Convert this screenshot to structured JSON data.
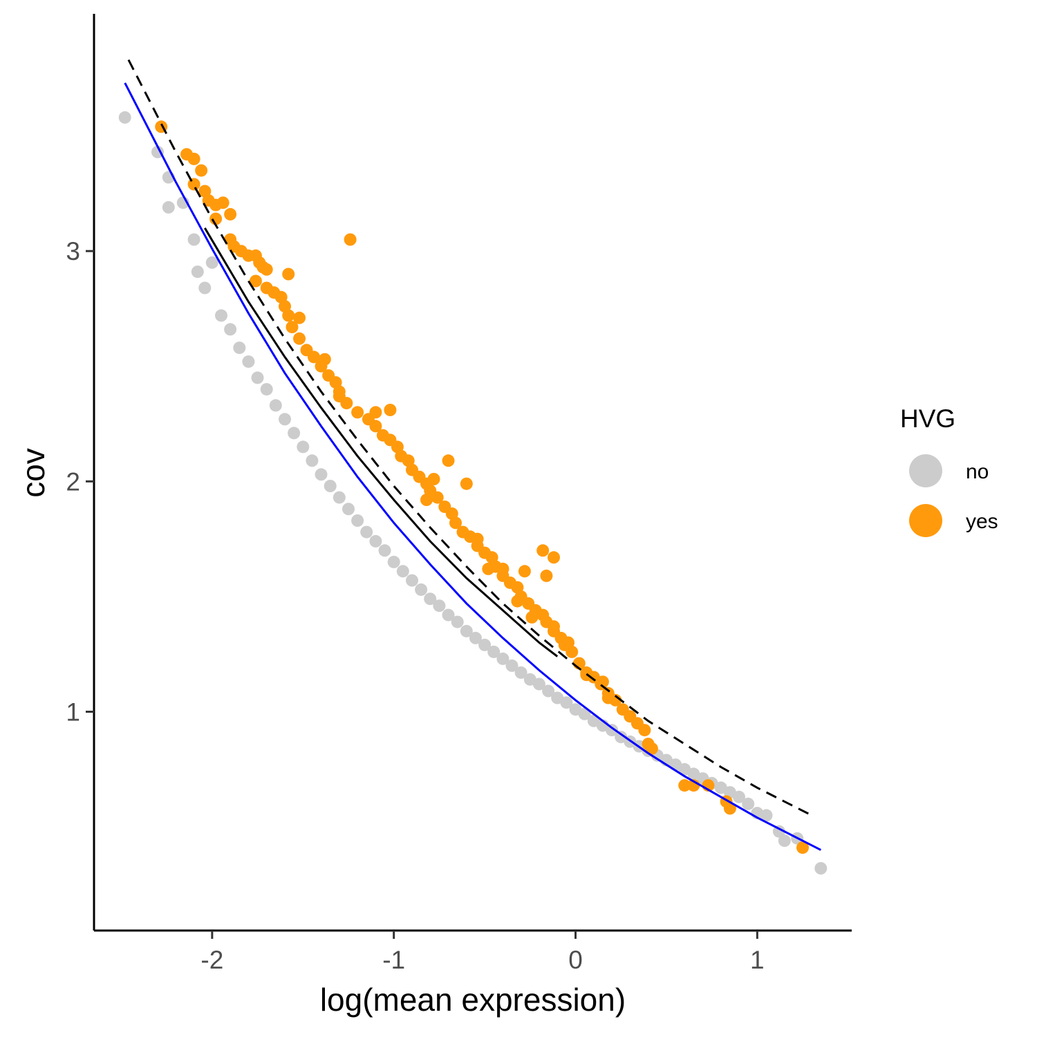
{
  "chart_data": {
    "type": "scatter",
    "title": "",
    "xlabel": "log(mean expression)",
    "ylabel": "cov",
    "xlim": [
      -2.65,
      1.52
    ],
    "ylim": [
      0.05,
      4.03
    ],
    "x_ticks": [
      -2,
      -1,
      0,
      1
    ],
    "x_tick_labels": [
      "-2",
      "-1",
      "0",
      "1"
    ],
    "y_ticks": [
      1,
      2,
      3
    ],
    "y_tick_labels": [
      "1",
      "2",
      "3"
    ],
    "grid": false,
    "legend": {
      "title": "HVG",
      "position": "right",
      "entries": [
        {
          "label": "no",
          "color": "#cccccc"
        },
        {
          "label": "yes",
          "color": "#ff9a0c"
        }
      ]
    },
    "series": [
      {
        "name": "no",
        "color": "#cccccc",
        "points": [
          [
            -2.48,
            3.58
          ],
          [
            -2.3,
            3.43
          ],
          [
            -2.24,
            3.32
          ],
          [
            -2.24,
            3.19
          ],
          [
            -2.16,
            3.21
          ],
          [
            -2.1,
            3.05
          ],
          [
            -2.08,
            2.91
          ],
          [
            -2.04,
            2.84
          ],
          [
            -2.0,
            2.95
          ],
          [
            -1.95,
            2.72
          ],
          [
            -1.9,
            2.66
          ],
          [
            -1.85,
            2.58
          ],
          [
            -1.8,
            2.52
          ],
          [
            -1.75,
            2.45
          ],
          [
            -1.7,
            2.4
          ],
          [
            -1.65,
            2.33
          ],
          [
            -1.6,
            2.27
          ],
          [
            -1.55,
            2.21
          ],
          [
            -1.5,
            2.15
          ],
          [
            -1.45,
            2.09
          ],
          [
            -1.4,
            2.03
          ],
          [
            -1.35,
            1.98
          ],
          [
            -1.3,
            1.93
          ],
          [
            -1.25,
            1.88
          ],
          [
            -1.2,
            1.83
          ],
          [
            -1.15,
            1.78
          ],
          [
            -1.1,
            1.74
          ],
          [
            -1.05,
            1.7
          ],
          [
            -1.0,
            1.65
          ],
          [
            -0.95,
            1.61
          ],
          [
            -0.9,
            1.57
          ],
          [
            -0.85,
            1.53
          ],
          [
            -0.8,
            1.49
          ],
          [
            -0.75,
            1.46
          ],
          [
            -0.7,
            1.42
          ],
          [
            -0.65,
            1.39
          ],
          [
            -0.6,
            1.35
          ],
          [
            -0.55,
            1.32
          ],
          [
            -0.5,
            1.29
          ],
          [
            -0.45,
            1.26
          ],
          [
            -0.4,
            1.23
          ],
          [
            -0.35,
            1.2
          ],
          [
            -0.3,
            1.17
          ],
          [
            -0.25,
            1.14
          ],
          [
            -0.2,
            1.12
          ],
          [
            -0.15,
            1.09
          ],
          [
            -0.1,
            1.06
          ],
          [
            -0.05,
            1.04
          ],
          [
            0.0,
            1.01
          ],
          [
            0.05,
            0.99
          ],
          [
            0.1,
            0.96
          ],
          [
            0.15,
            0.94
          ],
          [
            0.2,
            0.92
          ],
          [
            0.25,
            0.89
          ],
          [
            0.3,
            0.87
          ],
          [
            0.35,
            0.85
          ],
          [
            0.4,
            0.83
          ],
          [
            0.45,
            0.81
          ],
          [
            0.5,
            0.79
          ],
          [
            0.55,
            0.77
          ],
          [
            0.6,
            0.75
          ],
          [
            0.65,
            0.73
          ],
          [
            0.7,
            0.71
          ],
          [
            0.75,
            0.69
          ],
          [
            0.8,
            0.67
          ],
          [
            0.85,
            0.65
          ],
          [
            0.9,
            0.63
          ],
          [
            0.95,
            0.6
          ],
          [
            1.0,
            0.56
          ],
          [
            1.05,
            0.55
          ],
          [
            1.12,
            0.48
          ],
          [
            1.15,
            0.44
          ],
          [
            1.22,
            0.45
          ],
          [
            1.35,
            0.32
          ]
        ]
      },
      {
        "name": "yes",
        "color": "#ff9a0c",
        "points": [
          [
            -2.28,
            3.54
          ],
          [
            -2.14,
            3.42
          ],
          [
            -2.1,
            3.4
          ],
          [
            -2.06,
            3.35
          ],
          [
            -2.1,
            3.29
          ],
          [
            -2.04,
            3.26
          ],
          [
            -2.02,
            3.22
          ],
          [
            -1.98,
            3.2
          ],
          [
            -1.94,
            3.21
          ],
          [
            -1.9,
            3.16
          ],
          [
            -1.98,
            3.14
          ],
          [
            -1.9,
            3.05
          ],
          [
            -1.88,
            3.02
          ],
          [
            -1.84,
            3.0
          ],
          [
            -1.8,
            2.98
          ],
          [
            -1.76,
            2.98
          ],
          [
            -1.74,
            2.95
          ],
          [
            -1.72,
            2.93
          ],
          [
            -1.7,
            2.92
          ],
          [
            -1.76,
            2.87
          ],
          [
            -1.7,
            2.84
          ],
          [
            -1.66,
            2.82
          ],
          [
            -1.62,
            2.8
          ],
          [
            -1.6,
            2.76
          ],
          [
            -1.58,
            2.72
          ],
          [
            -1.56,
            2.67
          ],
          [
            -1.52,
            2.62
          ],
          [
            -1.48,
            2.57
          ],
          [
            -1.44,
            2.54
          ],
          [
            -1.4,
            2.5
          ],
          [
            -1.36,
            2.46
          ],
          [
            -1.32,
            2.43
          ],
          [
            -1.3,
            2.39
          ],
          [
            -1.26,
            2.34
          ],
          [
            -1.2,
            2.3
          ],
          [
            -1.14,
            2.27
          ],
          [
            -1.1,
            2.24
          ],
          [
            -1.06,
            2.2
          ],
          [
            -1.02,
            2.18
          ],
          [
            -0.98,
            2.15
          ],
          [
            -0.96,
            2.11
          ],
          [
            -0.92,
            2.09
          ],
          [
            -0.9,
            2.05
          ],
          [
            -0.86,
            2.02
          ],
          [
            -0.82,
            1.99
          ],
          [
            -0.8,
            1.96
          ],
          [
            -0.76,
            1.93
          ],
          [
            -0.72,
            1.89
          ],
          [
            -0.68,
            1.86
          ],
          [
            -0.66,
            1.82
          ],
          [
            -0.62,
            1.78
          ],
          [
            -0.58,
            1.76
          ],
          [
            -0.54,
            1.72
          ],
          [
            -0.5,
            1.69
          ],
          [
            -0.46,
            1.67
          ],
          [
            -0.44,
            1.63
          ],
          [
            -0.4,
            1.59
          ],
          [
            -0.36,
            1.56
          ],
          [
            -0.32,
            1.54
          ],
          [
            -0.3,
            1.5
          ],
          [
            -0.26,
            1.47
          ],
          [
            -0.22,
            1.44
          ],
          [
            -0.18,
            1.42
          ],
          [
            -0.16,
            1.39
          ],
          [
            -0.12,
            1.35
          ],
          [
            -0.08,
            1.32
          ],
          [
            -0.06,
            1.29
          ],
          [
            -0.02,
            1.26
          ],
          [
            0.02,
            1.21
          ],
          [
            0.06,
            1.17
          ],
          [
            0.1,
            1.15
          ],
          [
            0.14,
            1.12
          ],
          [
            0.18,
            1.08
          ],
          [
            0.22,
            1.05
          ],
          [
            0.26,
            1.01
          ],
          [
            0.3,
            0.98
          ],
          [
            0.34,
            0.95
          ],
          [
            0.38,
            0.92
          ],
          [
            -1.58,
            2.9
          ],
          [
            -1.52,
            2.71
          ],
          [
            -1.38,
            2.53
          ],
          [
            -1.3,
            2.37
          ],
          [
            -1.24,
            3.05
          ],
          [
            -1.1,
            2.3
          ],
          [
            -1.02,
            2.31
          ],
          [
            -0.7,
            2.09
          ],
          [
            -0.78,
            2.01
          ],
          [
            -0.6,
            1.99
          ],
          [
            -0.82,
            1.92
          ],
          [
            -0.54,
            1.75
          ],
          [
            -0.48,
            1.62
          ],
          [
            -0.4,
            1.62
          ],
          [
            -0.28,
            1.61
          ],
          [
            -0.18,
            1.7
          ],
          [
            -0.12,
            1.67
          ],
          [
            -0.16,
            1.59
          ],
          [
            -0.32,
            1.48
          ],
          [
            -0.24,
            1.41
          ],
          [
            -0.12,
            1.37
          ],
          [
            -0.04,
            1.3
          ],
          [
            0.06,
            1.16
          ],
          [
            0.15,
            1.13
          ],
          [
            0.18,
            1.06
          ],
          [
            0.4,
            0.86
          ],
          [
            0.42,
            0.84
          ],
          [
            0.6,
            0.68
          ],
          [
            0.65,
            0.68
          ],
          [
            0.73,
            0.68
          ],
          [
            0.83,
            0.61
          ],
          [
            0.85,
            0.58
          ],
          [
            1.25,
            0.41
          ]
        ]
      }
    ],
    "trend_lines": [
      {
        "style": "dashed",
        "color": "#000000",
        "points": [
          [
            -2.46,
            3.83
          ],
          [
            -2.2,
            3.43
          ],
          [
            -2.0,
            3.14
          ],
          [
            -1.8,
            2.87
          ],
          [
            -1.6,
            2.62
          ],
          [
            -1.4,
            2.39
          ],
          [
            -1.2,
            2.18
          ],
          [
            -1.0,
            1.98
          ],
          [
            -0.8,
            1.8
          ],
          [
            -0.6,
            1.63
          ],
          [
            -0.4,
            1.47
          ],
          [
            -0.2,
            1.33
          ],
          [
            0.0,
            1.2
          ],
          [
            0.2,
            1.08
          ],
          [
            0.4,
            0.96
          ],
          [
            0.6,
            0.86
          ],
          [
            0.8,
            0.76
          ],
          [
            1.0,
            0.67
          ],
          [
            1.2,
            0.59
          ],
          [
            1.3,
            0.55
          ]
        ]
      },
      {
        "style": "solid",
        "color": "#000000",
        "points": [
          [
            -2.04,
            3.1
          ],
          [
            -1.8,
            2.78
          ],
          [
            -1.6,
            2.54
          ],
          [
            -1.4,
            2.32
          ],
          [
            -1.2,
            2.11
          ],
          [
            -1.0,
            1.92
          ],
          [
            -0.8,
            1.74
          ],
          [
            -0.6,
            1.58
          ],
          [
            -0.4,
            1.44
          ],
          [
            -0.2,
            1.3
          ],
          [
            -0.1,
            1.24
          ]
        ]
      },
      {
        "style": "solid",
        "color": "#0000ff",
        "points": [
          [
            -2.48,
            3.73
          ],
          [
            -2.2,
            3.3
          ],
          [
            -2.0,
            3.01
          ],
          [
            -1.8,
            2.73
          ],
          [
            -1.6,
            2.47
          ],
          [
            -1.4,
            2.24
          ],
          [
            -1.2,
            2.02
          ],
          [
            -1.0,
            1.82
          ],
          [
            -0.8,
            1.64
          ],
          [
            -0.6,
            1.47
          ],
          [
            -0.4,
            1.32
          ],
          [
            -0.2,
            1.18
          ],
          [
            0.0,
            1.05
          ],
          [
            0.2,
            0.93
          ],
          [
            0.4,
            0.82
          ],
          [
            0.6,
            0.72
          ],
          [
            0.8,
            0.63
          ],
          [
            1.0,
            0.54
          ],
          [
            1.2,
            0.46
          ],
          [
            1.35,
            0.4
          ]
        ]
      }
    ]
  }
}
